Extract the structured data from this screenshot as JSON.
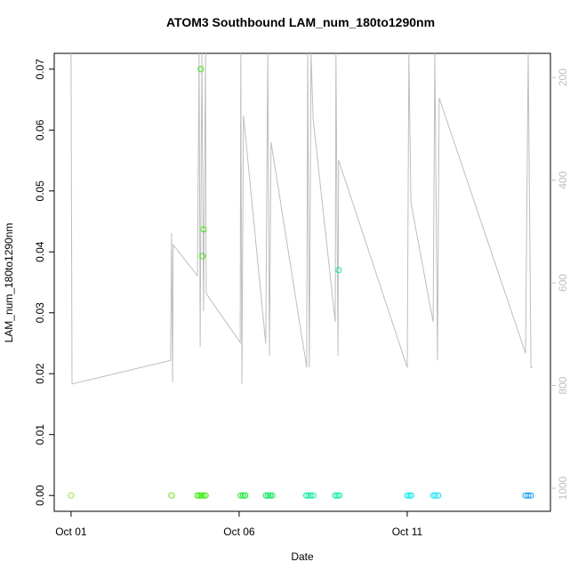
{
  "chart_data": {
    "type": "scatter",
    "title": "ATOM3 Southbound LAM_num_180to1290nm",
    "x_label": "Date",
    "y_label": "LAM_num_180to1290nm",
    "xlim": [
      0.5,
      15.26
    ],
    "xticks": [
      {
        "value": 1,
        "label": "Oct 01"
      },
      {
        "value": 6,
        "label": "Oct 06"
      },
      {
        "value": 11,
        "label": "Oct 11"
      }
    ],
    "ylim": [
      -0.0026,
      0.0726
    ],
    "yticks": [
      {
        "value": 0,
        "label": "0.00"
      },
      {
        "value": 0.01,
        "label": "0.01"
      },
      {
        "value": 0.02,
        "label": "0.02"
      },
      {
        "value": 0.03,
        "label": "0.03"
      },
      {
        "value": 0.04,
        "label": "0.04"
      },
      {
        "value": 0.05,
        "label": "0.05"
      },
      {
        "value": 0.06,
        "label": "0.06"
      },
      {
        "value": 0.07,
        "label": "0.07"
      }
    ],
    "y2lim": [
      1045,
      153
    ],
    "y2ticks": [
      200,
      400,
      600,
      800,
      1000
    ],
    "y2color": "#bebebe",
    "points": {
      "x": [
        1.0,
        3.99,
        4.76,
        4.82,
        4.88,
        4.94,
        5.0,
        4.86,
        4.94,
        4.91,
        6.05,
        6.12,
        6.18,
        6.8,
        6.86,
        6.92,
        6.98,
        8.0,
        8.06,
        8.12,
        8.2,
        8.86,
        8.92,
        8.98,
        8.96,
        11.0,
        11.06,
        11.12,
        11.78,
        11.84,
        11.92,
        14.52,
        14.6,
        14.68
      ],
      "values": [
        0,
        0,
        0,
        0,
        0,
        0,
        0,
        0.07,
        0.0437,
        0.0393,
        0,
        0,
        0,
        0,
        0,
        0,
        0,
        0,
        0,
        0,
        0,
        0,
        0,
        0,
        0.037,
        0,
        0,
        0,
        0,
        0,
        0,
        0,
        0,
        0
      ],
      "colors": [
        "#99e633",
        "#55ee00",
        "#33ee00",
        "#33ee00",
        "#33ee00",
        "#33ee00",
        "#33ee00",
        "#33ee00",
        "#33ee00",
        "#33ee00",
        "#00ee22",
        "#00ee22",
        "#00ee22",
        "#00ee55",
        "#00ee55",
        "#00ee55",
        "#00ee55",
        "#00ee99",
        "#00ee99",
        "#00ee99",
        "#00ee99",
        "#00eeaa",
        "#00eeaa",
        "#00eeaa",
        "#00eeaa",
        "#00eeee",
        "#00eeee",
        "#00eeee",
        "#00e6ff",
        "#00e6ff",
        "#00e6ff",
        "#0099ff",
        "#0099ff",
        "#0099ff"
      ]
    },
    "profile": {
      "axis": "y2",
      "color": "#bebebe",
      "x": [
        1.0,
        1.03,
        3.96,
        3.99,
        4.02,
        4.04,
        4.76,
        4.81,
        4.84,
        4.89,
        4.94,
        5.0,
        5.02,
        6.03,
        6.05,
        6.08,
        6.13,
        6.79,
        6.85,
        6.9,
        6.95,
        8.01,
        8.04,
        8.09,
        8.14,
        8.2,
        8.86,
        8.88,
        8.94,
        8.96,
        11.0,
        11.05,
        11.11,
        11.77,
        11.82,
        11.9,
        11.95,
        14.52,
        14.6,
        14.68,
        14.73
      ],
      "values": [
        153,
        797,
        751,
        503,
        794,
        526,
        586,
        153,
        725,
        153,
        655,
        153,
        621,
        716,
        153,
        797,
        274,
        718,
        153,
        742,
        326,
        765,
        153,
        765,
        153,
        280,
        676,
        153,
        742,
        361,
        765,
        153,
        444,
        676,
        153,
        751,
        240,
        737,
        153,
        765,
        765
      ]
    }
  }
}
